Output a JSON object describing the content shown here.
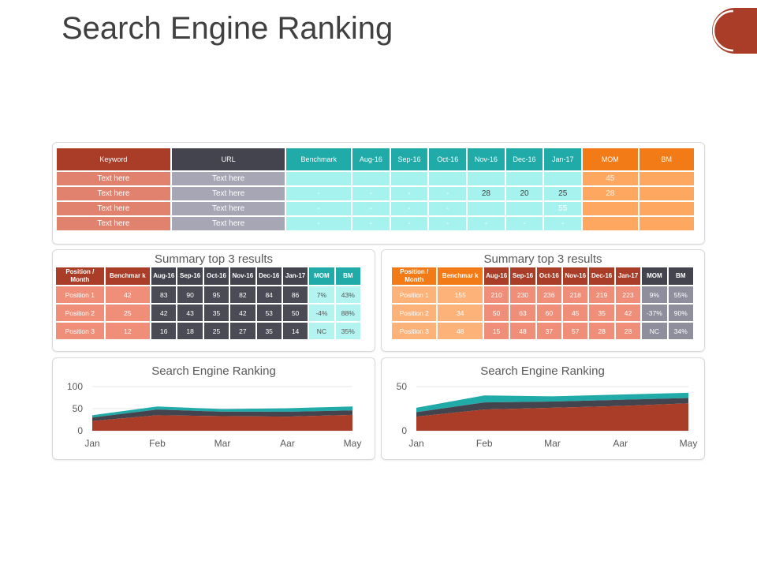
{
  "title": "Search Engine Ranking",
  "main_table": {
    "headers": [
      "Keyword",
      "URL",
      "Benchmark",
      "Aug-16",
      "Sep-16",
      "Oct-16",
      "Nov-16",
      "Dec-16",
      "Jan-17",
      "MOM",
      "BM"
    ],
    "rows": [
      [
        "Text here",
        "Text here",
        "",
        "",
        "",
        "",
        "",
        "",
        "",
        "45",
        ""
      ],
      [
        "Text here",
        "Text here",
        "-",
        "-",
        "-",
        "-",
        "28",
        "20",
        "25",
        "28",
        ""
      ],
      [
        "Text here",
        "Text here",
        "-",
        "-",
        "-",
        "-",
        "",
        "",
        "55",
        "",
        ""
      ],
      [
        "Text here",
        "Text here",
        "-",
        "-",
        "-",
        "-",
        "-",
        "-",
        "-",
        "",
        ""
      ]
    ]
  },
  "summary_left": {
    "title": "Summary top 3 results",
    "headers": [
      "Position / Month",
      "Benchmar k",
      "Aug-16",
      "Sep-16",
      "Oct-16",
      "Nov-16",
      "Dec-16",
      "Jan-17",
      "MOM",
      "BM"
    ],
    "rows": [
      [
        "Position 1",
        "42",
        "83",
        "90",
        "95",
        "82",
        "84",
        "86",
        "7%",
        "43%"
      ],
      [
        "Position 2",
        "25",
        "42",
        "43",
        "35",
        "42",
        "53",
        "50",
        "-4%",
        "88%"
      ],
      [
        "Position 3",
        "12",
        "16",
        "18",
        "25",
        "27",
        "35",
        "14",
        "NC",
        "35%"
      ]
    ]
  },
  "summary_right": {
    "title": "Summary top 3 results",
    "headers": [
      "Position / Month",
      "Benchmar k",
      "Aug-16",
      "Sep-16",
      "Oct-16",
      "Nov-16",
      "Dec-16",
      "Jan-17",
      "MOM",
      "BM"
    ],
    "rows": [
      [
        "Position 1",
        "155",
        "210",
        "230",
        "236",
        "218",
        "219",
        "223",
        "9%",
        "55%"
      ],
      [
        "Position 2",
        "34",
        "50",
        "63",
        "60",
        "45",
        "35",
        "42",
        "-37%",
        "90%"
      ],
      [
        "Position 3",
        "48",
        "15",
        "48",
        "37",
        "57",
        "28",
        "28",
        "NC",
        "34%"
      ]
    ]
  },
  "chart_data": [
    {
      "type": "area",
      "title": "Search Engine Ranking",
      "categories": [
        "Jan",
        "Feb",
        "Mar",
        "Aar",
        "May"
      ],
      "ylim": [
        0,
        100
      ],
      "yticks": [
        0,
        50,
        100
      ],
      "stacked": true,
      "series": [
        {
          "values": [
            22,
            35,
            33,
            32,
            36
          ],
          "color": "#a93d27"
        },
        {
          "values": [
            8,
            13,
            10,
            11,
            10
          ],
          "color": "#44444e"
        },
        {
          "values": [
            5,
            7,
            6,
            8,
            9
          ],
          "color": "#20aaa8"
        }
      ],
      "grid": true
    },
    {
      "type": "area",
      "title": "Search Engine Ranking",
      "categories": [
        "Jan",
        "Feb",
        "Mar",
        "Aar",
        "May"
      ],
      "ylim": [
        0,
        50
      ],
      "yticks": [
        0,
        50
      ],
      "stacked": true,
      "series": [
        {
          "values": [
            16,
            24,
            26,
            28,
            31
          ],
          "color": "#a93d27"
        },
        {
          "values": [
            5,
            8,
            7,
            7,
            6
          ],
          "color": "#44444e"
        },
        {
          "values": [
            5,
            8,
            6,
            6,
            6
          ],
          "color": "#20aaa8"
        }
      ],
      "grid": true
    }
  ]
}
